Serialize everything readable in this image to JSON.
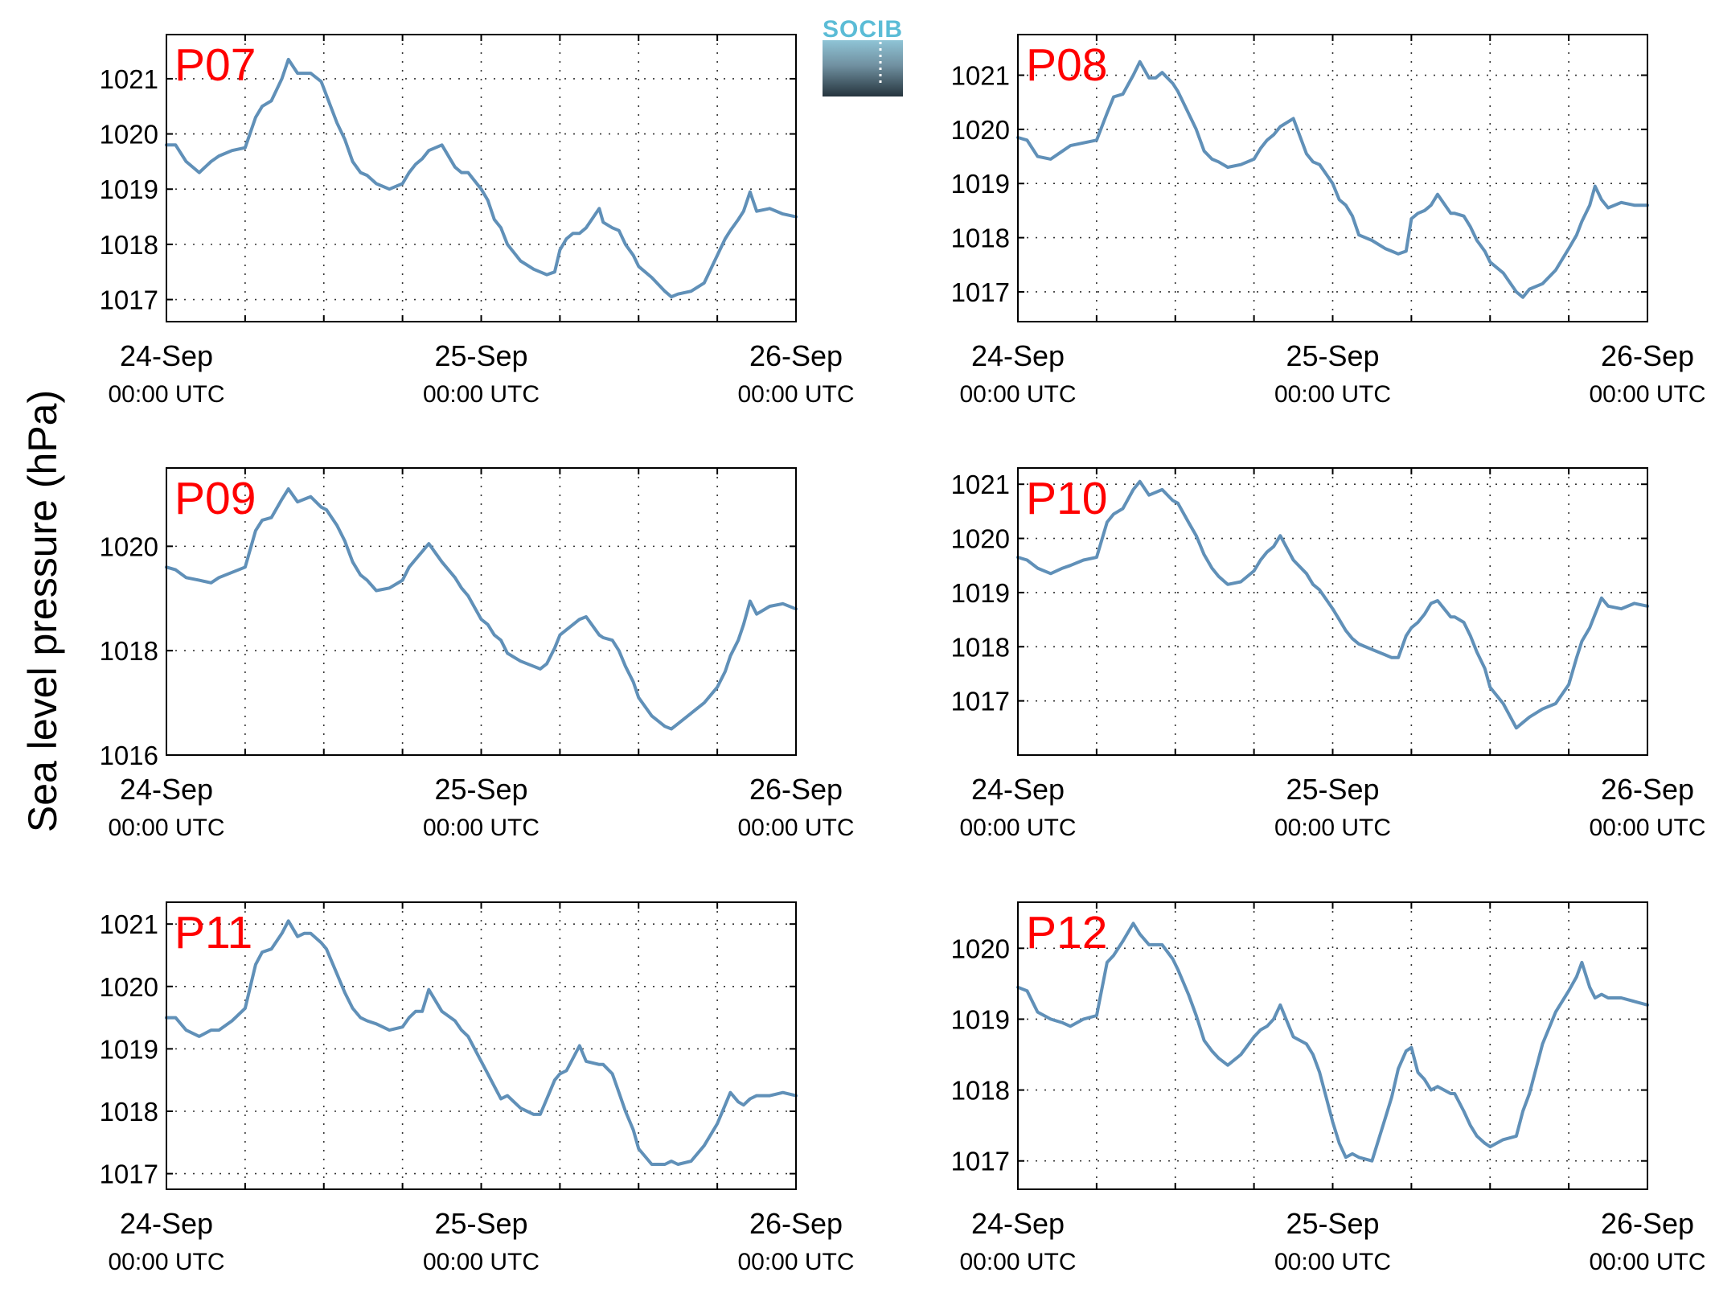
{
  "ylabel": "Sea level pressure (hPa)",
  "logo": {
    "text": "SOCIB",
    "color": "#5bbcd6"
  },
  "colors": {
    "series": "#6090b8",
    "panel_label": "#ff0000"
  },
  "chart_data": [
    {
      "type": "line",
      "label": "P07",
      "xlim": [
        0,
        48
      ],
      "ylim": [
        1016.6,
        1021.8
      ],
      "yticks": [
        1017,
        1018,
        1019,
        1020,
        1021
      ],
      "grid": true,
      "xticks": [
        {
          "x": 0,
          "date": "24-Sep",
          "time": "00:00 UTC"
        },
        {
          "x": 24,
          "date": "25-Sep",
          "time": "00:00 UTC"
        },
        {
          "x": 48,
          "date": "26-Sep",
          "time": "00:00 UTC"
        }
      ],
      "x": [
        0,
        0.7,
        1.5,
        2.5,
        3.4,
        4,
        5,
        6,
        6.8,
        7.3,
        8,
        8.8,
        9.3,
        10,
        10.5,
        11,
        11.8,
        12.2,
        13,
        13.6,
        14.2,
        14.8,
        15.3,
        16,
        17,
        18,
        18.5,
        19,
        19.5,
        20,
        21,
        22,
        22.5,
        23,
        24,
        24.5,
        25,
        25.5,
        26,
        27,
        28,
        28.5,
        29,
        29.6,
        30,
        30.5,
        31,
        31.5,
        32,
        33,
        33.3,
        34,
        34.5,
        35,
        35.6,
        36,
        37,
        38,
        38.5,
        39,
        40,
        41,
        42,
        42.6,
        43,
        43.6,
        44,
        44.5,
        45,
        46,
        47,
        48
      ],
      "y": [
        1019.8,
        1019.8,
        1019.5,
        1019.3,
        1019.5,
        1019.6,
        1019.7,
        1019.75,
        1020.3,
        1020.5,
        1020.6,
        1021.0,
        1021.35,
        1021.1,
        1021.1,
        1021.1,
        1020.95,
        1020.7,
        1020.2,
        1019.9,
        1019.5,
        1019.3,
        1019.25,
        1019.1,
        1019.0,
        1019.1,
        1019.3,
        1019.45,
        1019.55,
        1019.7,
        1019.8,
        1019.4,
        1019.3,
        1019.3,
        1019.0,
        1018.8,
        1018.45,
        1018.3,
        1018.0,
        1017.7,
        1017.55,
        1017.5,
        1017.45,
        1017.5,
        1017.9,
        1018.1,
        1018.2,
        1018.2,
        1018.3,
        1018.65,
        1018.4,
        1018.3,
        1018.25,
        1018.0,
        1017.8,
        1017.6,
        1017.4,
        1017.15,
        1017.05,
        1017.1,
        1017.15,
        1017.3,
        1017.8,
        1018.1,
        1018.25,
        1018.45,
        1018.6,
        1018.95,
        1018.6,
        1018.65,
        1018.55,
        1018.5
      ]
    },
    {
      "type": "line",
      "label": "P08",
      "xlim": [
        0,
        48
      ],
      "ylim": [
        1016.45,
        1021.75
      ],
      "yticks": [
        1017,
        1018,
        1019,
        1020,
        1021
      ],
      "grid": true,
      "xticks": [
        {
          "x": 0,
          "date": "24-Sep",
          "time": "00:00 UTC"
        },
        {
          "x": 24,
          "date": "25-Sep",
          "time": "00:00 UTC"
        },
        {
          "x": 48,
          "date": "26-Sep",
          "time": "00:00 UTC"
        }
      ],
      "x": [
        0,
        0.7,
        1.5,
        2.5,
        3.4,
        4,
        5,
        6,
        6.8,
        7.3,
        8,
        8.8,
        9.3,
        10,
        10.5,
        11,
        11.8,
        12.2,
        13,
        13.6,
        14.2,
        14.8,
        15.3,
        16,
        17,
        18,
        18.5,
        19,
        19.5,
        20,
        21,
        22,
        22.5,
        23,
        24,
        24.5,
        25,
        25.5,
        26,
        27,
        28,
        28.5,
        29,
        29.6,
        30,
        30.5,
        31,
        31.5,
        32,
        33,
        33.3,
        34,
        34.5,
        35,
        35.6,
        36,
        37,
        38,
        38.5,
        39,
        40,
        41,
        42,
        42.6,
        43,
        43.6,
        44,
        44.5,
        45,
        46,
        47,
        48
      ],
      "y": [
        1019.85,
        1019.8,
        1019.5,
        1019.45,
        1019.6,
        1019.7,
        1019.75,
        1019.8,
        1020.3,
        1020.6,
        1020.65,
        1021.0,
        1021.25,
        1020.95,
        1020.95,
        1021.05,
        1020.85,
        1020.7,
        1020.3,
        1020.0,
        1019.6,
        1019.45,
        1019.4,
        1019.3,
        1019.35,
        1019.45,
        1019.65,
        1019.8,
        1019.9,
        1020.05,
        1020.2,
        1019.55,
        1019.4,
        1019.35,
        1019.0,
        1018.7,
        1018.6,
        1018.4,
        1018.05,
        1017.95,
        1017.8,
        1017.75,
        1017.7,
        1017.75,
        1018.35,
        1018.45,
        1018.5,
        1018.6,
        1018.8,
        1018.45,
        1018.45,
        1018.4,
        1018.2,
        1017.95,
        1017.75,
        1017.55,
        1017.35,
        1017.0,
        1016.9,
        1017.05,
        1017.15,
        1017.4,
        1017.8,
        1018.05,
        1018.3,
        1018.6,
        1018.95,
        1018.7,
        1018.55,
        1018.65,
        1018.6,
        1018.6
      ]
    },
    {
      "type": "line",
      "label": "P09",
      "xlim": [
        0,
        48
      ],
      "ylim": [
        1016.0,
        1021.5
      ],
      "yticks": [
        1016,
        1018,
        1020
      ],
      "grid": true,
      "xticks": [
        {
          "x": 0,
          "date": "24-Sep",
          "time": "00:00 UTC"
        },
        {
          "x": 24,
          "date": "25-Sep",
          "time": "00:00 UTC"
        },
        {
          "x": 48,
          "date": "26-Sep",
          "time": "00:00 UTC"
        }
      ],
      "x": [
        0,
        0.7,
        1.5,
        2.5,
        3.4,
        4,
        5,
        6,
        6.8,
        7.3,
        8,
        8.8,
        9.3,
        10,
        10.5,
        11,
        11.8,
        12.2,
        13,
        13.6,
        14.2,
        14.8,
        15.3,
        16,
        17,
        18,
        18.5,
        19,
        19.5,
        20,
        21,
        22,
        22.5,
        23,
        24,
        24.5,
        25,
        25.5,
        26,
        27,
        28,
        28.5,
        29,
        29.6,
        30,
        30.5,
        31,
        31.5,
        32,
        33,
        33.3,
        34,
        34.5,
        35,
        35.6,
        36,
        37,
        38,
        38.5,
        39,
        40,
        41,
        42,
        42.6,
        43,
        43.6,
        44,
        44.5,
        45,
        46,
        47,
        48
      ],
      "y": [
        1019.6,
        1019.55,
        1019.4,
        1019.35,
        1019.3,
        1019.4,
        1019.5,
        1019.6,
        1020.3,
        1020.5,
        1020.55,
        1020.9,
        1021.1,
        1020.85,
        1020.9,
        1020.95,
        1020.75,
        1020.7,
        1020.4,
        1020.1,
        1019.7,
        1019.45,
        1019.35,
        1019.15,
        1019.2,
        1019.35,
        1019.6,
        1019.75,
        1019.9,
        1020.05,
        1019.7,
        1019.4,
        1019.2,
        1019.05,
        1018.6,
        1018.5,
        1018.3,
        1018.2,
        1017.95,
        1017.8,
        1017.7,
        1017.65,
        1017.75,
        1018.05,
        1018.3,
        1018.4,
        1018.5,
        1018.6,
        1018.65,
        1018.3,
        1018.25,
        1018.2,
        1018.0,
        1017.7,
        1017.4,
        1017.1,
        1016.75,
        1016.55,
        1016.5,
        1016.6,
        1016.8,
        1017.0,
        1017.3,
        1017.6,
        1017.9,
        1018.2,
        1018.5,
        1018.95,
        1018.7,
        1018.85,
        1018.9,
        1018.8
      ]
    },
    {
      "type": "line",
      "label": "P10",
      "xlim": [
        0,
        48
      ],
      "ylim": [
        1016.0,
        1021.3
      ],
      "yticks": [
        1017,
        1018,
        1019,
        1020,
        1021
      ],
      "grid": true,
      "xticks": [
        {
          "x": 0,
          "date": "24-Sep",
          "time": "00:00 UTC"
        },
        {
          "x": 24,
          "date": "25-Sep",
          "time": "00:00 UTC"
        },
        {
          "x": 48,
          "date": "26-Sep",
          "time": "00:00 UTC"
        }
      ],
      "x": [
        0,
        0.7,
        1.5,
        2.5,
        3.4,
        4,
        5,
        6,
        6.8,
        7.3,
        8,
        8.8,
        9.3,
        10,
        10.5,
        11,
        11.8,
        12.2,
        13,
        13.6,
        14.2,
        14.8,
        15.3,
        16,
        17,
        18,
        18.5,
        19,
        19.5,
        20,
        21,
        22,
        22.5,
        23,
        24,
        24.5,
        25,
        25.5,
        26,
        27,
        28,
        28.5,
        29,
        29.6,
        30,
        30.5,
        31,
        31.5,
        32,
        33,
        33.3,
        34,
        34.5,
        35,
        35.6,
        36,
        37,
        38,
        38.5,
        39,
        40,
        41,
        42,
        42.6,
        43,
        43.6,
        44,
        44.5,
        45,
        46,
        47,
        48
      ],
      "y": [
        1019.65,
        1019.6,
        1019.45,
        1019.35,
        1019.45,
        1019.5,
        1019.6,
        1019.65,
        1020.3,
        1020.45,
        1020.55,
        1020.9,
        1021.05,
        1020.8,
        1020.85,
        1020.9,
        1020.7,
        1020.65,
        1020.3,
        1020.05,
        1019.7,
        1019.45,
        1019.3,
        1019.15,
        1019.2,
        1019.4,
        1019.6,
        1019.75,
        1019.85,
        1020.05,
        1019.6,
        1019.35,
        1019.15,
        1019.05,
        1018.7,
        1018.5,
        1018.3,
        1018.15,
        1018.05,
        1017.95,
        1017.85,
        1017.8,
        1017.8,
        1018.2,
        1018.35,
        1018.45,
        1018.6,
        1018.8,
        1018.85,
        1018.55,
        1018.55,
        1018.45,
        1018.2,
        1017.9,
        1017.6,
        1017.25,
        1016.95,
        1016.5,
        1016.6,
        1016.7,
        1016.85,
        1016.95,
        1017.3,
        1017.8,
        1018.1,
        1018.35,
        1018.6,
        1018.9,
        1018.75,
        1018.7,
        1018.8,
        1018.75
      ]
    },
    {
      "type": "line",
      "label": "P11",
      "xlim": [
        0,
        48
      ],
      "ylim": [
        1016.75,
        1021.35
      ],
      "yticks": [
        1017,
        1018,
        1019,
        1020,
        1021
      ],
      "grid": true,
      "xticks": [
        {
          "x": 0,
          "date": "24-Sep",
          "time": "00:00 UTC"
        },
        {
          "x": 24,
          "date": "25-Sep",
          "time": "00:00 UTC"
        },
        {
          "x": 48,
          "date": "26-Sep",
          "time": "00:00 UTC"
        }
      ],
      "x": [
        0,
        0.7,
        1.5,
        2.5,
        3.4,
        4,
        5,
        6,
        6.8,
        7.3,
        8,
        8.8,
        9.3,
        10,
        10.5,
        11,
        11.8,
        12.2,
        13,
        13.6,
        14.2,
        14.8,
        15.3,
        16,
        17,
        18,
        18.5,
        19,
        19.5,
        20,
        21,
        22,
        22.5,
        23,
        24,
        24.5,
        25,
        25.5,
        26,
        27,
        28,
        28.5,
        29,
        29.6,
        30,
        30.5,
        31,
        31.5,
        32,
        33,
        33.3,
        34,
        34.5,
        35,
        35.6,
        36,
        37,
        38,
        38.5,
        39,
        40,
        41,
        42,
        42.6,
        43,
        43.6,
        44,
        44.5,
        45,
        46,
        47,
        48
      ],
      "y": [
        1019.5,
        1019.5,
        1019.3,
        1019.2,
        1019.3,
        1019.3,
        1019.45,
        1019.65,
        1020.35,
        1020.55,
        1020.6,
        1020.85,
        1021.05,
        1020.8,
        1020.85,
        1020.85,
        1020.7,
        1020.6,
        1020.2,
        1019.9,
        1019.65,
        1019.5,
        1019.45,
        1019.4,
        1019.3,
        1019.35,
        1019.5,
        1019.6,
        1019.6,
        1019.95,
        1019.6,
        1019.45,
        1019.3,
        1019.2,
        1018.8,
        1018.6,
        1018.4,
        1018.2,
        1018.25,
        1018.05,
        1017.95,
        1017.95,
        1018.2,
        1018.5,
        1018.6,
        1018.65,
        1018.85,
        1019.05,
        1018.8,
        1018.75,
        1018.75,
        1018.6,
        1018.3,
        1018.0,
        1017.7,
        1017.4,
        1017.15,
        1017.15,
        1017.2,
        1017.15,
        1017.2,
        1017.45,
        1017.8,
        1018.1,
        1018.3,
        1018.15,
        1018.1,
        1018.2,
        1018.25,
        1018.25,
        1018.3,
        1018.25
      ]
    },
    {
      "type": "line",
      "label": "P12",
      "xlim": [
        0,
        48
      ],
      "ylim": [
        1016.6,
        1020.65
      ],
      "yticks": [
        1017,
        1018,
        1019,
        1020
      ],
      "grid": true,
      "xticks": [
        {
          "x": 0,
          "date": "24-Sep",
          "time": "00:00 UTC"
        },
        {
          "x": 24,
          "date": "25-Sep",
          "time": "00:00 UTC"
        },
        {
          "x": 48,
          "date": "26-Sep",
          "time": "00:00 UTC"
        }
      ],
      "x": [
        0,
        0.7,
        1.5,
        2.5,
        3.4,
        4,
        5,
        6,
        6.8,
        7.3,
        8,
        8.8,
        9.3,
        10,
        10.5,
        11,
        11.8,
        12.2,
        13,
        13.6,
        14.2,
        14.8,
        15.3,
        16,
        17,
        18,
        18.5,
        19,
        19.5,
        20,
        21,
        22,
        22.5,
        23,
        24,
        24.5,
        25,
        25.5,
        26,
        27,
        28,
        28.5,
        29,
        29.6,
        30,
        30.5,
        31,
        31.5,
        32,
        33,
        33.3,
        34,
        34.5,
        35,
        35.6,
        36,
        37,
        38,
        38.5,
        39,
        40,
        41,
        42,
        42.6,
        43,
        43.6,
        44,
        44.5,
        45,
        46,
        47,
        48
      ],
      "y": [
        1019.45,
        1019.4,
        1019.1,
        1019.0,
        1018.95,
        1018.9,
        1019.0,
        1019.05,
        1019.8,
        1019.9,
        1020.1,
        1020.35,
        1020.2,
        1020.05,
        1020.05,
        1020.05,
        1019.85,
        1019.7,
        1019.35,
        1019.05,
        1018.7,
        1018.55,
        1018.45,
        1018.35,
        1018.5,
        1018.75,
        1018.85,
        1018.9,
        1019.0,
        1019.2,
        1018.75,
        1018.65,
        1018.5,
        1018.25,
        1017.55,
        1017.25,
        1017.05,
        1017.1,
        1017.05,
        1017.0,
        1017.6,
        1017.9,
        1018.3,
        1018.55,
        1018.6,
        1018.25,
        1018.15,
        1018.0,
        1018.05,
        1017.95,
        1017.95,
        1017.7,
        1017.5,
        1017.35,
        1017.25,
        1017.2,
        1017.3,
        1017.35,
        1017.7,
        1017.95,
        1018.65,
        1019.1,
        1019.4,
        1019.6,
        1019.8,
        1019.45,
        1019.3,
        1019.35,
        1019.3,
        1019.3,
        1019.25,
        1019.2
      ]
    }
  ]
}
